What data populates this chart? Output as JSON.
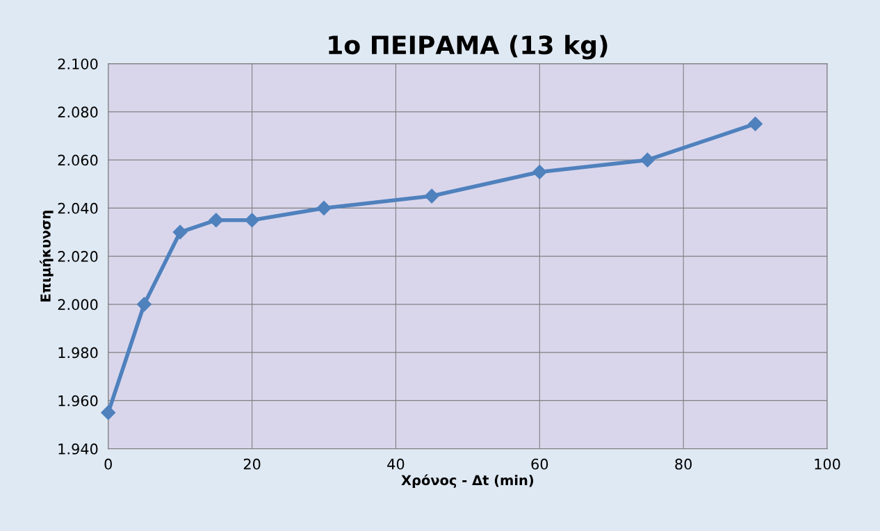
{
  "chart_data": {
    "type": "line",
    "title": "1ο ΠΕΙΡΑΜΑ (13 kg)",
    "xlabel": "Χρόνος - Δt (min)",
    "ylabel": "Επιμήκυνση",
    "x": [
      0,
      5,
      10,
      15,
      20,
      30,
      45,
      60,
      75,
      90
    ],
    "series": [
      {
        "color": "#4f81bd",
        "values": [
          1955,
          2000,
          2030,
          2035,
          2035,
          2040,
          2045,
          2055,
          2060,
          2075
        ]
      }
    ],
    "xlim": [
      0,
      100
    ],
    "xticks": [
      0,
      20,
      40,
      60,
      80,
      100
    ],
    "ylim": [
      1940,
      2100
    ],
    "yticks": [
      {
        "value": 1940,
        "label": "1.940"
      },
      {
        "value": 1960,
        "label": "1.960"
      },
      {
        "value": 1980,
        "label": "1.980"
      },
      {
        "value": 2000,
        "label": "2.000"
      },
      {
        "value": 2020,
        "label": "2.020"
      },
      {
        "value": 2040,
        "label": "2.040"
      },
      {
        "value": 2060,
        "label": "2.060"
      },
      {
        "value": 2080,
        "label": "2.080"
      },
      {
        "value": 2100,
        "label": "2.100"
      }
    ],
    "grid": true,
    "marker": "diamond",
    "line_style": "solid"
  }
}
